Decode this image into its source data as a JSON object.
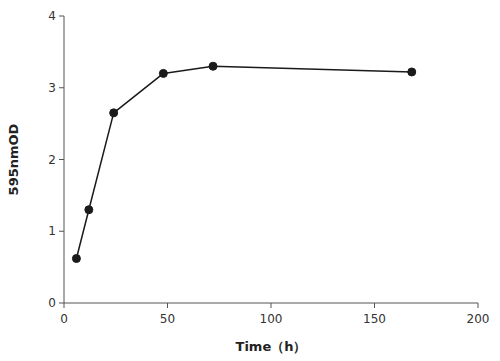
{
  "chart_data": {
    "type": "line",
    "x": [
      6,
      12,
      24,
      48,
      72,
      168
    ],
    "values": [
      0.62,
      1.3,
      2.65,
      3.2,
      3.3,
      3.22
    ],
    "xlabel": "Time（h）",
    "ylabel": "595nmOD",
    "xlim": [
      0,
      200
    ],
    "ylim": [
      0,
      4
    ],
    "xticks": [
      0,
      50,
      100,
      150,
      200
    ],
    "yticks": [
      0,
      1,
      2,
      3,
      4
    ],
    "color": "#1a1a1a",
    "marker": "circle"
  }
}
